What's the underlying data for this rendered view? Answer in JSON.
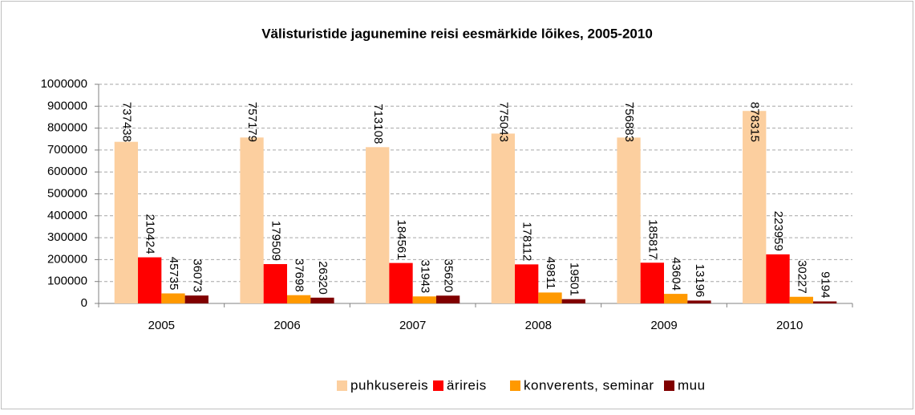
{
  "chart_data": {
    "type": "bar",
    "title": "Välisturistide jagunemine reisi eesmärkide lõikes, 2005-2010",
    "categories": [
      "2005",
      "2006",
      "2007",
      "2008",
      "2009",
      "2010"
    ],
    "series": [
      {
        "name": "puhkusereis",
        "color": "#fccf9f",
        "values": [
          737438,
          757179,
          713108,
          775043,
          756883,
          878315
        ]
      },
      {
        "name": "ärireis",
        "color": "#ff0000",
        "values": [
          210424,
          179509,
          184561,
          178112,
          185817,
          223959
        ]
      },
      {
        "name": "konverents, seminar",
        "color": "#ff9900",
        "values": [
          45735,
          37698,
          31943,
          49811,
          43604,
          30227
        ]
      },
      {
        "name": "muu",
        "color": "#800000",
        "values": [
          36073,
          26320,
          35620,
          19501,
          13196,
          9194
        ]
      }
    ],
    "ylim": [
      0,
      1000000
    ],
    "yticks": [
      0,
      100000,
      200000,
      300000,
      400000,
      500000,
      600000,
      700000,
      800000,
      900000,
      1000000
    ],
    "grid": true,
    "legend": "bottom"
  }
}
